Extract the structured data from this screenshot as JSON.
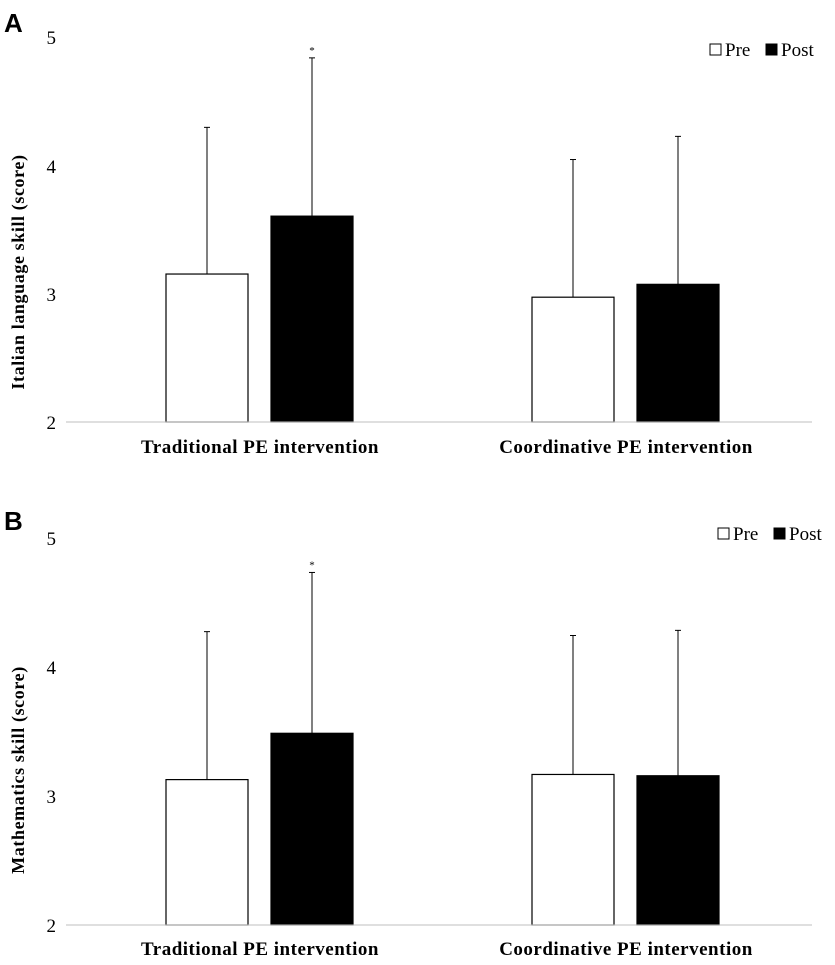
{
  "chart_data": [
    {
      "panel": "A",
      "type": "bar",
      "ylabel": "Italian language skill (score)",
      "ylim": [
        2,
        5
      ],
      "yticks": [
        "2",
        "3",
        "4",
        "5"
      ],
      "categories": [
        "Traditional PE intervention",
        "Coordinative PE intervention"
      ],
      "series": [
        {
          "name": "Pre",
          "color": "#ffffff",
          "values": [
            3.15,
            2.97
          ],
          "error_upper": [
            4.29,
            4.04
          ]
        },
        {
          "name": "Post",
          "color": "#000000",
          "values": [
            3.6,
            3.07
          ],
          "error_upper": [
            4.83,
            4.22
          ]
        }
      ],
      "annotations": [
        {
          "text": "*",
          "category": 0,
          "series": "Post"
        }
      ],
      "legend": "top-right",
      "grid": false
    },
    {
      "panel": "B",
      "type": "bar",
      "ylabel": "Mathematics skill (score)",
      "ylim": [
        2,
        5
      ],
      "yticks": [
        "2",
        "3",
        "4",
        "5"
      ],
      "categories": [
        "Traditional PE intervention",
        "Coordinative PE intervention"
      ],
      "series": [
        {
          "name": "Pre",
          "color": "#ffffff",
          "values": [
            3.13,
            3.17
          ],
          "error_upper": [
            4.28,
            4.25
          ]
        },
        {
          "name": "Post",
          "color": "#000000",
          "values": [
            3.49,
            3.16
          ],
          "error_upper": [
            4.74,
            4.29
          ]
        }
      ],
      "annotations": [
        {
          "text": "*",
          "category": 0,
          "series": "Post"
        }
      ],
      "legend": "top-right",
      "grid": false
    }
  ]
}
